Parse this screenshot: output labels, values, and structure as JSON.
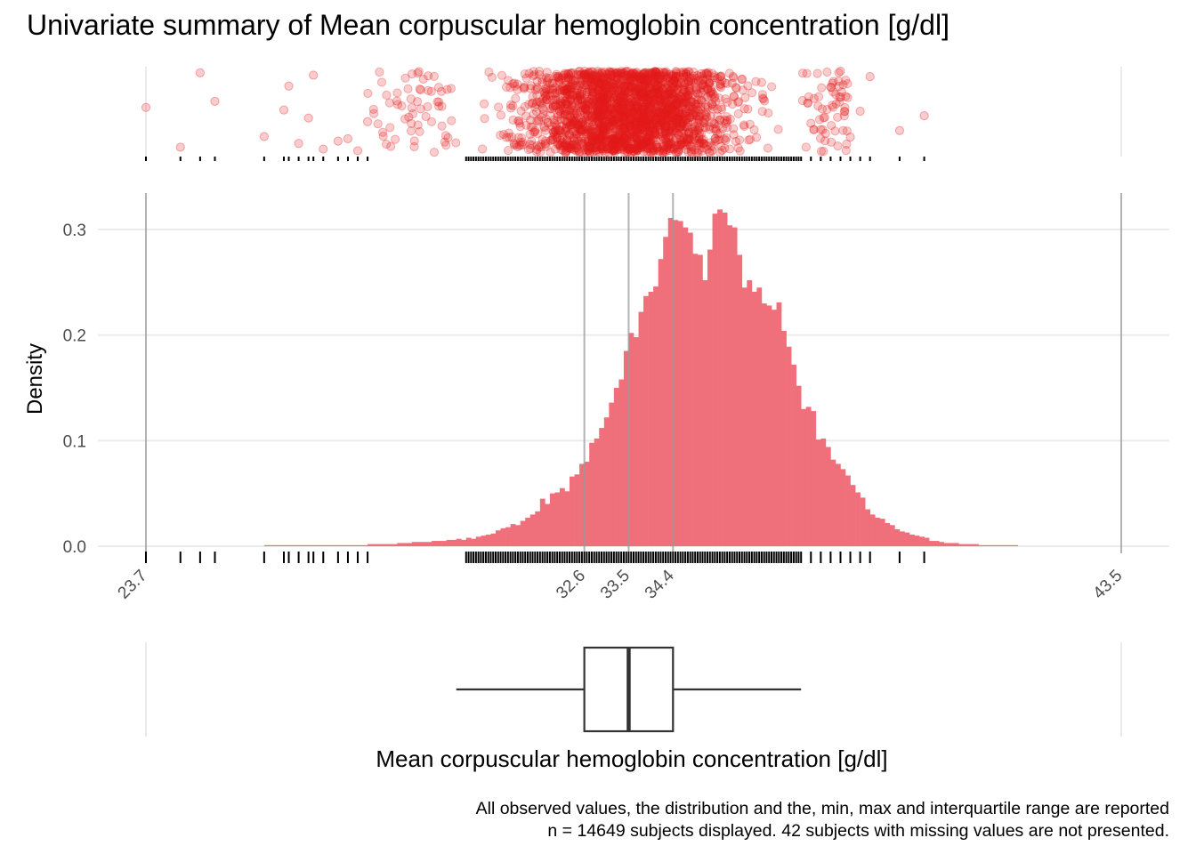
{
  "chart_data": {
    "type": "histogram",
    "title": "Univariate summary of Mean corpuscular hemoglobin concentration [g/dl]",
    "xlabel": "Mean corpuscular hemoglobin concentration [g/dl]",
    "ylabel": "Density",
    "ylim": [
      0,
      0.33
    ],
    "xlim": [
      23.7,
      43.5
    ],
    "y_ticks": [
      "0.0",
      "0.1",
      "0.2",
      "0.3"
    ],
    "y_tick_values": [
      0,
      0.1,
      0.2,
      0.3
    ],
    "x_ticks": [
      "23.7",
      "32.6",
      "33.5",
      "34.4",
      "43.5"
    ],
    "x_tick_values": [
      23.7,
      32.6,
      33.5,
      34.4,
      43.5
    ],
    "summary": {
      "min": 23.7,
      "q1": 32.6,
      "median": 33.5,
      "q3": 34.4,
      "max": 43.5,
      "whisker_low": 30.0,
      "whisker_high": 37.0
    },
    "histogram": {
      "bin_start": 26.1,
      "bin_width": 0.1,
      "values": [
        0.001,
        0.001,
        0.001,
        0.001,
        0.001,
        0.001,
        0.001,
        0.001,
        0.001,
        0.001,
        0.001,
        0.001,
        0.001,
        0.001,
        0.001,
        0.001,
        0.001,
        0.001,
        0.001,
        0.001,
        0.001,
        0.002,
        0.002,
        0.002,
        0.002,
        0.002,
        0.002,
        0.003,
        0.003,
        0.003,
        0.004,
        0.004,
        0.004,
        0.004,
        0.005,
        0.005,
        0.005,
        0.006,
        0.006,
        0.007,
        0.006,
        0.008,
        0.007,
        0.009,
        0.01,
        0.011,
        0.012,
        0.015,
        0.017,
        0.018,
        0.021,
        0.02,
        0.024,
        0.027,
        0.03,
        0.033,
        0.045,
        0.04,
        0.05,
        0.051,
        0.055,
        0.052,
        0.066,
        0.068,
        0.078,
        0.08,
        0.098,
        0.102,
        0.112,
        0.122,
        0.136,
        0.15,
        0.158,
        0.185,
        0.202,
        0.198,
        0.222,
        0.237,
        0.241,
        0.246,
        0.272,
        0.293,
        0.311,
        0.309,
        0.308,
        0.302,
        0.297,
        0.277,
        0.276,
        0.252,
        0.281,
        0.315,
        0.319,
        0.316,
        0.304,
        0.302,
        0.276,
        0.245,
        0.252,
        0.241,
        0.245,
        0.23,
        0.228,
        0.224,
        0.231,
        0.204,
        0.189,
        0.172,
        0.152,
        0.13,
        0.132,
        0.128,
        0.101,
        0.102,
        0.094,
        0.082,
        0.078,
        0.073,
        0.067,
        0.058,
        0.051,
        0.046,
        0.035,
        0.03,
        0.027,
        0.026,
        0.022,
        0.02,
        0.016,
        0.014,
        0.013,
        0.011,
        0.01,
        0.009,
        0.008,
        0.005,
        0.005,
        0.004,
        0.003,
        0.003,
        0.003,
        0.002,
        0.002,
        0.002,
        0.002,
        0.001,
        0.001,
        0.001,
        0.001,
        0.001,
        0.001,
        0.001,
        0.001
      ]
    },
    "outlier_points": [
      23.7,
      24.4,
      24.8,
      25.1,
      26.1,
      26.5,
      26.6,
      26.8,
      27.0,
      27.1,
      27.3,
      27.6,
      27.8,
      28.0,
      28.2,
      37.2,
      37.4,
      37.6,
      37.8,
      38.0,
      38.2,
      38.4,
      39.0,
      39.5
    ],
    "n_displayed": 14649,
    "n_missing": 42,
    "colors": {
      "fill": "#e41a1c",
      "bar": "#ef6f7a",
      "line": "#999999",
      "box": "#333333"
    }
  },
  "caption": {
    "line1": "All observed values, the distribution and the, min, max and interquartile range are reported",
    "line2": "n = 14649 subjects displayed. 42 subjects with missing values are not presented."
  }
}
